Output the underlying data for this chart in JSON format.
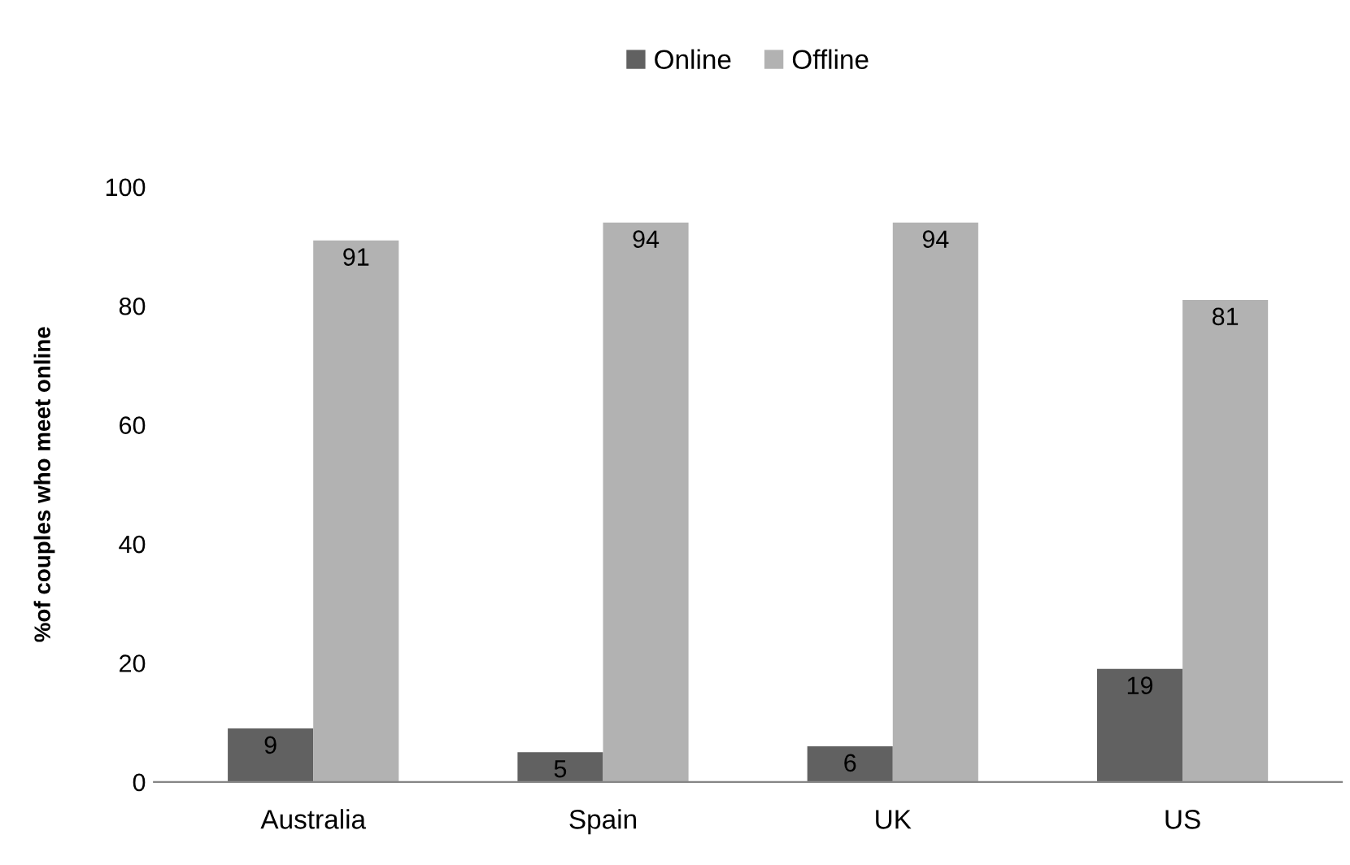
{
  "chart_data": {
    "type": "bar",
    "ylabel": "%of couples who meet online",
    "categories": [
      "Australia",
      "Spain",
      "UK",
      "US"
    ],
    "series": [
      {
        "name": "Online",
        "color": "#616161",
        "values": [
          9,
          5,
          6,
          19
        ]
      },
      {
        "name": "Offline",
        "color": "#b2b2b2",
        "values": [
          91,
          94,
          94,
          81
        ]
      }
    ],
    "ylim": [
      0,
      100
    ],
    "yticks": [
      0,
      20,
      40,
      60,
      80,
      100
    ],
    "grid": false,
    "legend": "top",
    "data_labels": true
  }
}
